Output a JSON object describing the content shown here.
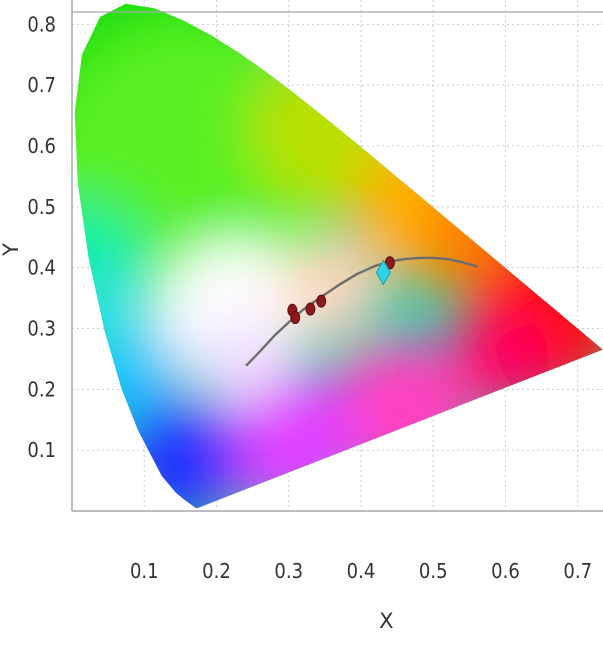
{
  "chart_data": {
    "type": "scatter",
    "title": "",
    "xlabel": "X",
    "ylabel": "Y",
    "xlim": [
      0.0,
      0.735
    ],
    "ylim": [
      0.0,
      0.84
    ],
    "x_ticks": [
      0.1,
      0.2,
      0.3,
      0.4,
      0.5,
      0.6,
      0.7
    ],
    "y_ticks": [
      0.1,
      0.2,
      0.3,
      0.4,
      0.5,
      0.6,
      0.7,
      0.8
    ],
    "grid": true,
    "colors": {
      "grid": "#cccccc",
      "axis": "#a8a8a8",
      "curve": "#6d6d6d",
      "points": "#8b1a1a",
      "highlight": "#2fd3e6"
    },
    "spectral_locus": [
      [
        0.1741,
        0.005
      ],
      [
        0.1738,
        0.0049
      ],
      [
        0.1736,
        0.0049
      ],
      [
        0.1733,
        0.0048
      ],
      [
        0.1726,
        0.0048
      ],
      [
        0.1714,
        0.0051
      ],
      [
        0.1689,
        0.0069
      ],
      [
        0.1644,
        0.0109
      ],
      [
        0.1566,
        0.0177
      ],
      [
        0.144,
        0.0297
      ],
      [
        0.1241,
        0.0578
      ],
      [
        0.0913,
        0.1327
      ],
      [
        0.0687,
        0.2007
      ],
      [
        0.0454,
        0.295
      ],
      [
        0.0235,
        0.4127
      ],
      [
        0.0082,
        0.5384
      ],
      [
        0.0039,
        0.6548
      ],
      [
        0.0139,
        0.7502
      ],
      [
        0.0389,
        0.812
      ],
      [
        0.0743,
        0.8338
      ],
      [
        0.1142,
        0.8262
      ],
      [
        0.1547,
        0.8059
      ],
      [
        0.1929,
        0.7816
      ],
      [
        0.2296,
        0.7543
      ],
      [
        0.2658,
        0.7243
      ],
      [
        0.3016,
        0.6923
      ],
      [
        0.3373,
        0.6589
      ],
      [
        0.3731,
        0.6245
      ],
      [
        0.4087,
        0.5896
      ],
      [
        0.4441,
        0.5547
      ],
      [
        0.4788,
        0.5202
      ],
      [
        0.5125,
        0.4866
      ],
      [
        0.5448,
        0.4544
      ],
      [
        0.5752,
        0.4242
      ],
      [
        0.6029,
        0.3965
      ],
      [
        0.627,
        0.3725
      ],
      [
        0.6482,
        0.3514
      ],
      [
        0.6658,
        0.334
      ],
      [
        0.6801,
        0.3197
      ],
      [
        0.6915,
        0.3083
      ],
      [
        0.7006,
        0.2993
      ],
      [
        0.7079,
        0.292
      ],
      [
        0.714,
        0.2859
      ],
      [
        0.719,
        0.2809
      ],
      [
        0.723,
        0.277
      ],
      [
        0.726,
        0.274
      ],
      [
        0.7283,
        0.2717
      ],
      [
        0.73,
        0.27
      ],
      [
        0.7311,
        0.2689
      ],
      [
        0.732,
        0.268
      ],
      [
        0.7327,
        0.2673
      ],
      [
        0.7334,
        0.2666
      ],
      [
        0.734,
        0.266
      ],
      [
        0.7344,
        0.2656
      ],
      [
        0.7346,
        0.2654
      ],
      [
        0.7347,
        0.2653
      ]
    ],
    "planckian_locus": [
      [
        0.242,
        0.24
      ],
      [
        0.26,
        0.262
      ],
      [
        0.28,
        0.288
      ],
      [
        0.3,
        0.31
      ],
      [
        0.32,
        0.331
      ],
      [
        0.345,
        0.352
      ],
      [
        0.37,
        0.372
      ],
      [
        0.395,
        0.39
      ],
      [
        0.42,
        0.403
      ],
      [
        0.44,
        0.41
      ],
      [
        0.46,
        0.414
      ],
      [
        0.48,
        0.416
      ],
      [
        0.5,
        0.416
      ],
      [
        0.52,
        0.414
      ],
      [
        0.54,
        0.409
      ],
      [
        0.56,
        0.402
      ]
    ],
    "points": [
      {
        "x": 0.305,
        "y": 0.33
      },
      {
        "x": 0.309,
        "y": 0.318
      },
      {
        "x": 0.33,
        "y": 0.332
      },
      {
        "x": 0.345,
        "y": 0.345
      },
      {
        "x": 0.44,
        "y": 0.408
      }
    ],
    "highlight_point": {
      "x": 0.431,
      "y": 0.392
    }
  }
}
